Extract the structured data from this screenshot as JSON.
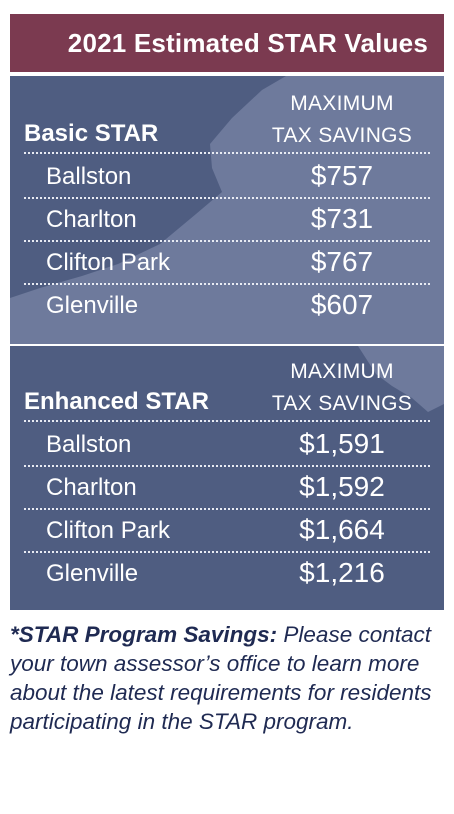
{
  "header": {
    "title": "2021 Estimated STAR Values"
  },
  "basic": {
    "heading": "Basic STAR",
    "column_line1": "MAXIMUM",
    "column_line2": "TAX SAVINGS",
    "rows": [
      {
        "town": "Ballston",
        "value": "$757"
      },
      {
        "town": "Charlton",
        "value": "$731"
      },
      {
        "town": "Clifton Park",
        "value": "$767"
      },
      {
        "town": "Glenville",
        "value": "$607"
      }
    ]
  },
  "enhanced": {
    "heading": "Enhanced STAR",
    "column_line1": "MAXIMUM",
    "column_line2": "TAX SAVINGS",
    "rows": [
      {
        "town": "Ballston",
        "value": "$1,591"
      },
      {
        "town": "Charlton",
        "value": "$1,592"
      },
      {
        "town": "Clifton Park",
        "value": "$1,664"
      },
      {
        "town": "Glenville",
        "value": "$1,216"
      }
    ]
  },
  "footnote": {
    "lead": "*STAR Program Savings:",
    "body": " Please contact your town assessor’s office to learn more about the latest requirements for residents participating in the STAR program."
  },
  "colors": {
    "title_bar": "#7b3a50",
    "panel": "#4f5d81",
    "map_silhouette": "#6e7a9c",
    "note_text": "#1f2a52"
  }
}
